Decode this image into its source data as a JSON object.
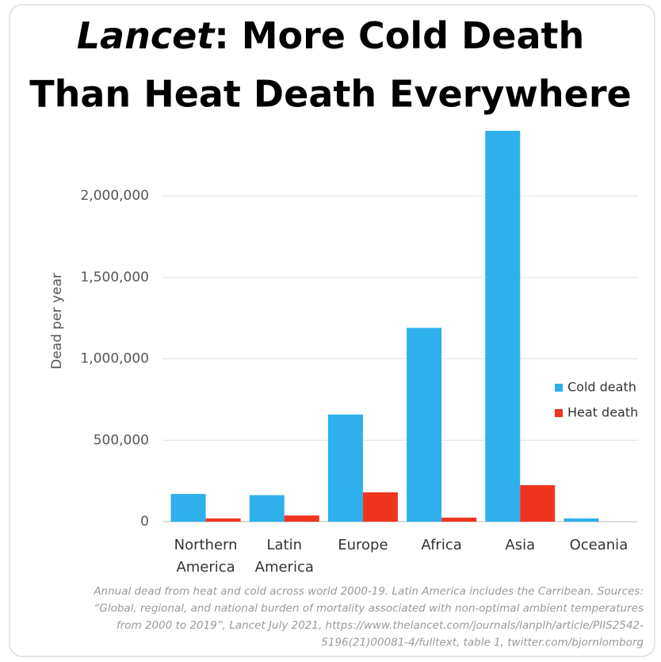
{
  "chart_data": {
    "type": "bar",
    "title_italic": "Lancet",
    "title": [
      ": More Cold Death",
      "Than Heat Death Everywhere"
    ],
    "y_label": "Dead per year",
    "categories": [
      "Northern America",
      "Latin America",
      "Europe",
      "Africa",
      "Asia",
      "Oceania"
    ],
    "series": [
      {
        "name": "Cold death",
        "color": "#2eb0ec",
        "values": [
          170000,
          163000,
          658000,
          1190000,
          2400000,
          20000
        ]
      },
      {
        "name": "Heat death",
        "color": "#f0341d",
        "values": [
          20000,
          38000,
          180000,
          25000,
          224000,
          0
        ]
      }
    ],
    "ylim": [
      0,
      2400000
    ],
    "yticks": [
      0,
      {
        "value": 500000,
        "label": "500,000"
      },
      {
        "value": 1000000,
        "label": "1,000,000"
      },
      {
        "value": 1500000,
        "label": "1,500,000"
      },
      {
        "value": 2000000,
        "label": "2,000,000"
      }
    ],
    "grid": true,
    "legend": "right",
    "footnote": [
      "Annual dead from heat and cold across world 2000-19. Latin America includes the Carribean. Sources:",
      "“Global, regional, and national burden of mortality associated with non-optimal ambient temperatures",
      "from 2000 to 2019”, Lancet July 2021, https://www.thelancet.com/journals/lanplh/article/PIIS2542-",
      "5196(21)00081-4/fulltext, table 1, twitter.com/bjornlomborg"
    ]
  }
}
